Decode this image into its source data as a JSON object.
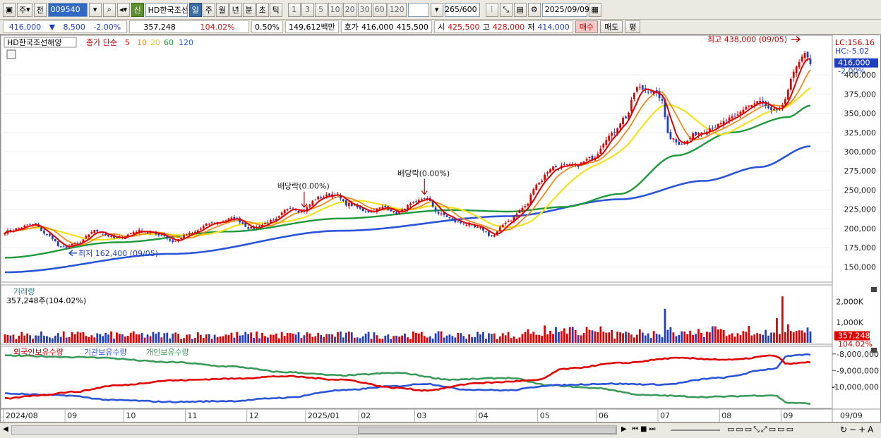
{
  "toolbar": {
    "market_label": "주",
    "prev_label": "전",
    "code": "009540",
    "shin": "신",
    "stock_name": "HD한국조선",
    "periods": [
      "일",
      "주",
      "월",
      "년",
      "분",
      "초",
      "틱"
    ],
    "active_period": "일",
    "ticks": [
      "1",
      "3",
      "5",
      "10",
      "20",
      "30",
      "60",
      "120"
    ],
    "count_value": "265",
    "count_total": "/600",
    "date": "2025/09/09"
  },
  "quote": {
    "price": "416,000",
    "change_arrow": "▼",
    "change": "8,500",
    "change_pct": "-2.00%",
    "volume": "357,248",
    "volume_ratio": "104.02%",
    "turnover": "0.50%",
    "amount": "149,612백만",
    "hoga_label": "호가",
    "ask": "416,000",
    "bid": "415,500",
    "open_label": "시",
    "open": "425,500",
    "high_label": "고",
    "high": "428,000",
    "low_label": "저",
    "low": "414,000",
    "buy_label": "매수",
    "sell_label": "매도",
    "avg_label": "평"
  },
  "colors": {
    "candle_up": "#e00000",
    "candle_down": "#1f3fbf",
    "ma5": "#e00000",
    "ma10": "#ef8a1c",
    "ma20": "#f2e21a",
    "ma60": "#1e9a3c",
    "ma120": "#2a55d6",
    "foreign": "#e00000",
    "institution": "#2a55d6",
    "individual": "#3a9a5a"
  },
  "chart_data": [
    {
      "type": "line",
      "title": "HD한국조선해양",
      "legend": {
        "label": "종가 단순",
        "periods": [
          "5",
          "10",
          "20",
          "60",
          "120"
        ]
      },
      "lc_label": "LC:156.16",
      "hc_label": "HC:-5.02",
      "current_price_tag": "416,000",
      "current_pct_tag": "-2.00%",
      "yticks": [
        "150,000",
        "175,000",
        "200,000",
        "225,000",
        "250,000",
        "275,000",
        "300,000",
        "325,000",
        "350,000",
        "375,000",
        "400,000"
      ],
      "ylim": [
        132000,
        446000
      ],
      "x_labels": [
        "2024/08",
        "09",
        "10",
        "11",
        "12",
        "2025/01",
        "02",
        "03",
        "04",
        "05",
        "06",
        "07",
        "08",
        "09",
        "09/09"
      ],
      "annotations": [
        {
          "text": "최고 438,000 (09/05)"
        },
        {
          "text": "최저 162,400 (09/05)"
        },
        {
          "text": "배당락(0.00%)"
        },
        {
          "text": "배당락(0.00%)"
        }
      ],
      "close_anchors": [
        {
          "d": 0,
          "v": 196000
        },
        {
          "d": 10,
          "v": 205000
        },
        {
          "d": 16,
          "v": 190000
        },
        {
          "d": 20,
          "v": 175000
        },
        {
          "d": 26,
          "v": 180000
        },
        {
          "d": 32,
          "v": 197000
        },
        {
          "d": 40,
          "v": 187000
        },
        {
          "d": 48,
          "v": 197000
        },
        {
          "d": 56,
          "v": 192000
        },
        {
          "d": 60,
          "v": 183000
        },
        {
          "d": 66,
          "v": 193000
        },
        {
          "d": 74,
          "v": 207000
        },
        {
          "d": 82,
          "v": 213000
        },
        {
          "d": 88,
          "v": 200000
        },
        {
          "d": 96,
          "v": 210000
        },
        {
          "d": 102,
          "v": 228000
        },
        {
          "d": 106,
          "v": 222000
        },
        {
          "d": 112,
          "v": 240000
        },
        {
          "d": 118,
          "v": 245000
        },
        {
          "d": 122,
          "v": 232000
        },
        {
          "d": 130,
          "v": 222000
        },
        {
          "d": 136,
          "v": 228000
        },
        {
          "d": 140,
          "v": 220000
        },
        {
          "d": 146,
          "v": 232000
        },
        {
          "d": 150,
          "v": 240000
        },
        {
          "d": 156,
          "v": 218000
        },
        {
          "d": 162,
          "v": 208000
        },
        {
          "d": 170,
          "v": 200000
        },
        {
          "d": 174,
          "v": 190000
        },
        {
          "d": 180,
          "v": 210000
        },
        {
          "d": 186,
          "v": 228000
        },
        {
          "d": 190,
          "v": 258000
        },
        {
          "d": 196,
          "v": 280000
        },
        {
          "d": 204,
          "v": 282000
        },
        {
          "d": 210,
          "v": 292000
        },
        {
          "d": 216,
          "v": 320000
        },
        {
          "d": 222,
          "v": 345000
        },
        {
          "d": 226,
          "v": 383000
        },
        {
          "d": 230,
          "v": 380000
        },
        {
          "d": 234,
          "v": 372000
        },
        {
          "d": 238,
          "v": 318000
        },
        {
          "d": 242,
          "v": 310000
        },
        {
          "d": 248,
          "v": 325000
        },
        {
          "d": 254,
          "v": 333000
        },
        {
          "d": 260,
          "v": 343000
        },
        {
          "d": 266,
          "v": 360000
        },
        {
          "d": 270,
          "v": 365000
        },
        {
          "d": 274,
          "v": 352000
        },
        {
          "d": 278,
          "v": 358000
        },
        {
          "d": 282,
          "v": 405000
        },
        {
          "d": 286,
          "v": 425000
        },
        {
          "d": 288,
          "v": 416000
        }
      ],
      "ma60_anchors": [
        {
          "d": 0,
          "v": 162000
        },
        {
          "d": 40,
          "v": 182000
        },
        {
          "d": 80,
          "v": 196000
        },
        {
          "d": 120,
          "v": 213000
        },
        {
          "d": 160,
          "v": 224000
        },
        {
          "d": 180,
          "v": 222000
        },
        {
          "d": 200,
          "v": 228000
        },
        {
          "d": 220,
          "v": 245000
        },
        {
          "d": 240,
          "v": 295000
        },
        {
          "d": 260,
          "v": 325000
        },
        {
          "d": 280,
          "v": 345000
        },
        {
          "d": 288,
          "v": 360000
        }
      ],
      "ma120_anchors": [
        {
          "d": 0,
          "v": 143000
        },
        {
          "d": 60,
          "v": 167000
        },
        {
          "d": 120,
          "v": 197000
        },
        {
          "d": 180,
          "v": 216000
        },
        {
          "d": 220,
          "v": 238000
        },
        {
          "d": 250,
          "v": 262000
        },
        {
          "d": 270,
          "v": 280000
        },
        {
          "d": 288,
          "v": 307000
        }
      ]
    },
    {
      "type": "bar",
      "title": "거래량",
      "value_label": "357,248주(104.02%)",
      "current_tag": "357,248",
      "current_pct_tag": "104.02%",
      "yticks": [
        "2,000K",
        "1,000K"
      ],
      "ylim": [
        0,
        2600000
      ],
      "spikes": [
        {
          "d": 236,
          "v": 1650000,
          "up": false
        },
        {
          "d": 278,
          "v": 2250000,
          "up": true
        },
        {
          "d": 276,
          "v": 1200000,
          "up": true
        },
        {
          "d": 280,
          "v": 900000,
          "up": true
        }
      ]
    },
    {
      "type": "line",
      "title": "외국인보유수량",
      "series_names": [
        "외국인보유수량",
        "기관보유수량",
        "개인보유수량"
      ],
      "yticks": [
        "-8,000,000",
        "-9,000,000",
        "-10,000,000"
      ],
      "foreign_anchors": [
        {
          "d": 0,
          "v": -10700000
        },
        {
          "d": 12,
          "v": -10500000
        },
        {
          "d": 24,
          "v": -10300000
        },
        {
          "d": 40,
          "v": -9900000
        },
        {
          "d": 60,
          "v": -9600000
        },
        {
          "d": 80,
          "v": -9500000
        },
        {
          "d": 100,
          "v": -9350000
        },
        {
          "d": 120,
          "v": -9550000
        },
        {
          "d": 140,
          "v": -10050000
        },
        {
          "d": 150,
          "v": -10200000
        },
        {
          "d": 170,
          "v": -9750000
        },
        {
          "d": 190,
          "v": -9600000
        },
        {
          "d": 200,
          "v": -8900000
        },
        {
          "d": 220,
          "v": -8550000
        },
        {
          "d": 240,
          "v": -8250000
        },
        {
          "d": 260,
          "v": -8350000
        },
        {
          "d": 275,
          "v": -8100000
        },
        {
          "d": 280,
          "v": -8600000
        },
        {
          "d": 288,
          "v": -8500000
        }
      ],
      "institution_anchors": [
        {
          "d": 0,
          "v": -10400000
        },
        {
          "d": 20,
          "v": -10500000
        },
        {
          "d": 40,
          "v": -10800000
        },
        {
          "d": 60,
          "v": -10900000
        },
        {
          "d": 80,
          "v": -10850000
        },
        {
          "d": 100,
          "v": -10650000
        },
        {
          "d": 120,
          "v": -10200000
        },
        {
          "d": 140,
          "v": -9950000
        },
        {
          "d": 150,
          "v": -9800000
        },
        {
          "d": 165,
          "v": -10150000
        },
        {
          "d": 180,
          "v": -10200000
        },
        {
          "d": 195,
          "v": -9900000
        },
        {
          "d": 215,
          "v": -9800000
        },
        {
          "d": 235,
          "v": -9850000
        },
        {
          "d": 255,
          "v": -9450000
        },
        {
          "d": 275,
          "v": -8900000
        },
        {
          "d": 280,
          "v": -8100000
        },
        {
          "d": 288,
          "v": -8050000
        }
      ],
      "individual_anchors": [
        {
          "d": 0,
          "v": -8100000
        },
        {
          "d": 30,
          "v": -8200000
        },
        {
          "d": 60,
          "v": -8500000
        },
        {
          "d": 80,
          "v": -8750000
        },
        {
          "d": 100,
          "v": -9100000
        },
        {
          "d": 120,
          "v": -9300000
        },
        {
          "d": 140,
          "v": -9150000
        },
        {
          "d": 160,
          "v": -9550000
        },
        {
          "d": 180,
          "v": -9450000
        },
        {
          "d": 195,
          "v": -9900000
        },
        {
          "d": 210,
          "v": -10050000
        },
        {
          "d": 230,
          "v": -10500000
        },
        {
          "d": 250,
          "v": -10600000
        },
        {
          "d": 275,
          "v": -10500000
        },
        {
          "d": 280,
          "v": -10950000
        },
        {
          "d": 288,
          "v": -11000000
        }
      ]
    }
  ]
}
